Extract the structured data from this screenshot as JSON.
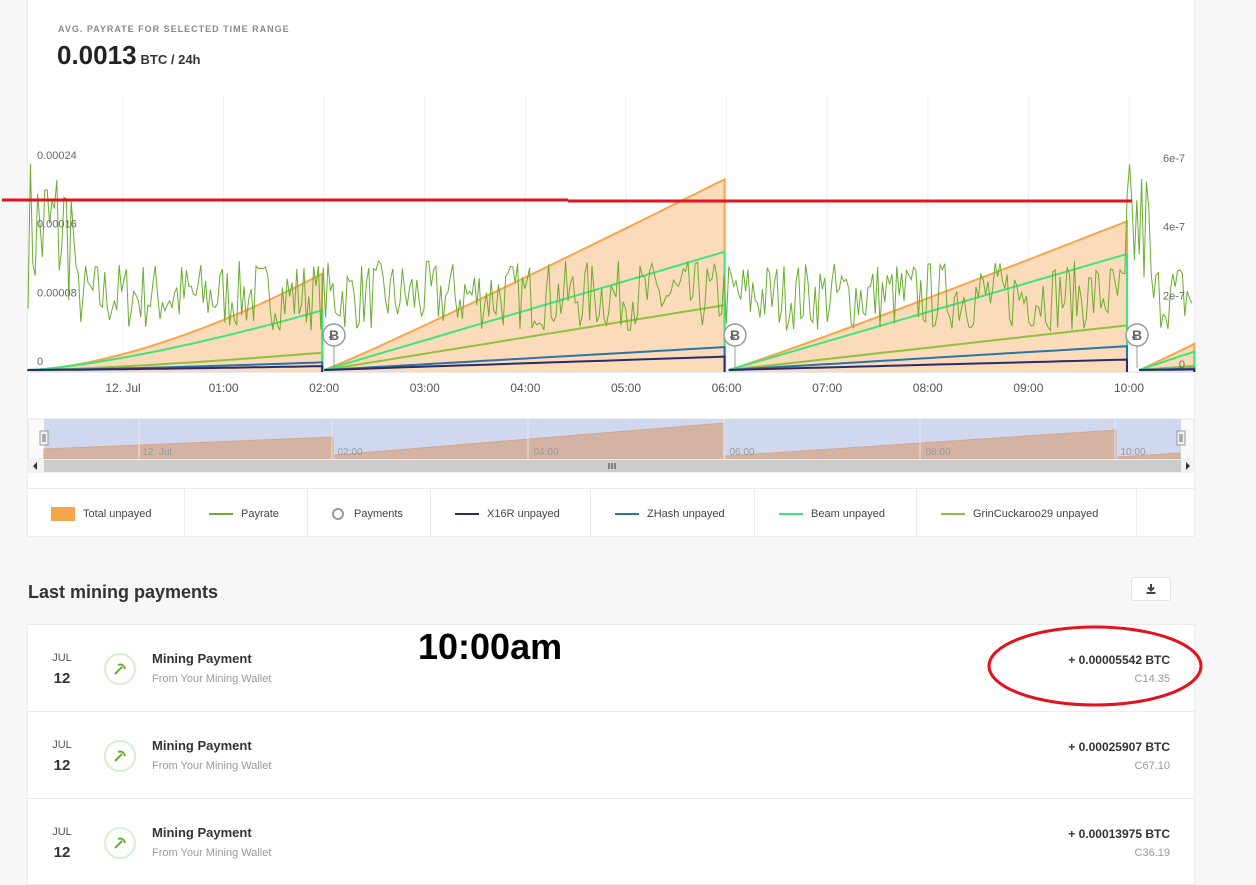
{
  "summary": {
    "label": "AVG. PAYRATE FOR SELECTED TIME RANGE",
    "value": "0.0013",
    "unit": "BTC / 24h"
  },
  "chart_data": {
    "type": "area",
    "left_axis_ticks": [
      "0",
      "0.00008",
      "0.00016",
      "0.00024"
    ],
    "right_axis_ticks": [
      "0",
      "2e-7",
      "4e-7",
      "6e-7"
    ],
    "x_ticks": [
      "12. Jul",
      "01:00",
      "02:00",
      "03:00",
      "04:00",
      "05:00",
      "06:00",
      "07:00",
      "08:00",
      "09:00",
      "10:00"
    ],
    "payment_marker_times": [
      "02:00",
      "06:00",
      "10:00"
    ],
    "payment_marker_symbol": "Ƀ",
    "navigator_ticks": [
      "12. Jul",
      "02:00",
      "04:00",
      "06:00",
      "08:00",
      "10:00"
    ],
    "legend": [
      {
        "name": "Total unpayed",
        "kind": "box",
        "color": "#f7a54a"
      },
      {
        "name": "Payrate",
        "kind": "line",
        "color": "#6aad2f"
      },
      {
        "name": "Payments",
        "kind": "circle",
        "color": "#999999"
      },
      {
        "name": "X16R unpayed",
        "kind": "line",
        "color": "#2b2d6b"
      },
      {
        "name": "ZHash unpayed",
        "kind": "line",
        "color": "#2c73a6"
      },
      {
        "name": "Beam unpayed",
        "kind": "line",
        "color": "#3ee67a"
      },
      {
        "name": "GrinCuckaroo29 unpayed",
        "kind": "line",
        "color": "#8fc13e"
      }
    ]
  },
  "payments": {
    "title": "Last mining payments",
    "rows": [
      {
        "month": "JUL",
        "day": "12",
        "title": "Mining Payment",
        "subtitle": "From Your Mining Wallet",
        "amount": "+ 0.00005542 BTC",
        "fiat": "C14.35"
      },
      {
        "month": "JUL",
        "day": "12",
        "title": "Mining Payment",
        "subtitle": "From Your Mining Wallet",
        "amount": "+ 0.00025907 BTC",
        "fiat": "C67.10"
      },
      {
        "month": "JUL",
        "day": "12",
        "title": "Mining Payment",
        "subtitle": "From Your Mining Wallet",
        "amount": "+ 0.00013975 BTC",
        "fiat": "C36.19"
      }
    ]
  },
  "annotation": {
    "time_label": "10:00am",
    "color": "#e3121d"
  }
}
